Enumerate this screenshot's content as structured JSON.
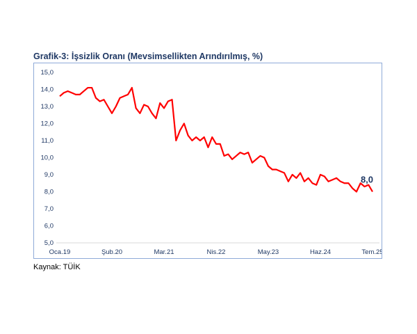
{
  "chart_data": {
    "type": "line",
    "title": "Grafik-3: İşsizlik Oranı (Mevsimsellikten Arındırılmış, %)",
    "xlabel": "",
    "ylabel": "",
    "ylim": [
      5,
      15
    ],
    "yticks": [
      "5,0",
      "6,0",
      "7,0",
      "8,0",
      "9,0",
      "10,0",
      "11,0",
      "12,0",
      "13,0",
      "14,0",
      "15,0"
    ],
    "x_start": "2019-01",
    "x_end": "2025-07",
    "x_frequency": "monthly",
    "xtick_labels": [
      {
        "index": 0,
        "label": "Oca.19"
      },
      {
        "index": 13,
        "label": "Şub.20"
      },
      {
        "index": 26,
        "label": "Mar.21"
      },
      {
        "index": 39,
        "label": "Nis.22"
      },
      {
        "index": 52,
        "label": "May.23"
      },
      {
        "index": 65,
        "label": "Haz.24"
      },
      {
        "index": 78,
        "label": "Tem.25"
      }
    ],
    "series": [
      {
        "color": "#ff0000",
        "values": [
          13.6,
          13.8,
          13.9,
          13.8,
          13.7,
          13.7,
          13.9,
          14.1,
          14.1,
          13.5,
          13.3,
          13.4,
          13.0,
          12.6,
          13.0,
          13.5,
          13.6,
          13.7,
          14.1,
          12.9,
          12.6,
          13.1,
          13.0,
          12.6,
          12.3,
          13.2,
          12.9,
          13.3,
          13.4,
          11.0,
          11.6,
          12.0,
          11.3,
          11.0,
          11.2,
          11.0,
          11.2,
          10.6,
          11.2,
          10.8,
          10.8,
          10.1,
          10.2,
          9.9,
          10.1,
          10.3,
          10.2,
          10.3,
          9.7,
          9.9,
          10.1,
          10.0,
          9.5,
          9.3,
          9.3,
          9.2,
          9.1,
          8.6,
          9.0,
          8.8,
          9.1,
          8.6,
          8.8,
          8.5,
          8.4,
          9.0,
          8.9,
          8.6,
          8.7,
          8.8,
          8.6,
          8.5,
          8.5,
          8.2,
          8.0,
          8.5,
          8.3,
          8.4,
          8.0
        ]
      }
    ],
    "data_label": {
      "index": 78,
      "text": "8,0"
    },
    "grid": false,
    "legend": "none"
  },
  "source": "Kaynak: TÜİK"
}
